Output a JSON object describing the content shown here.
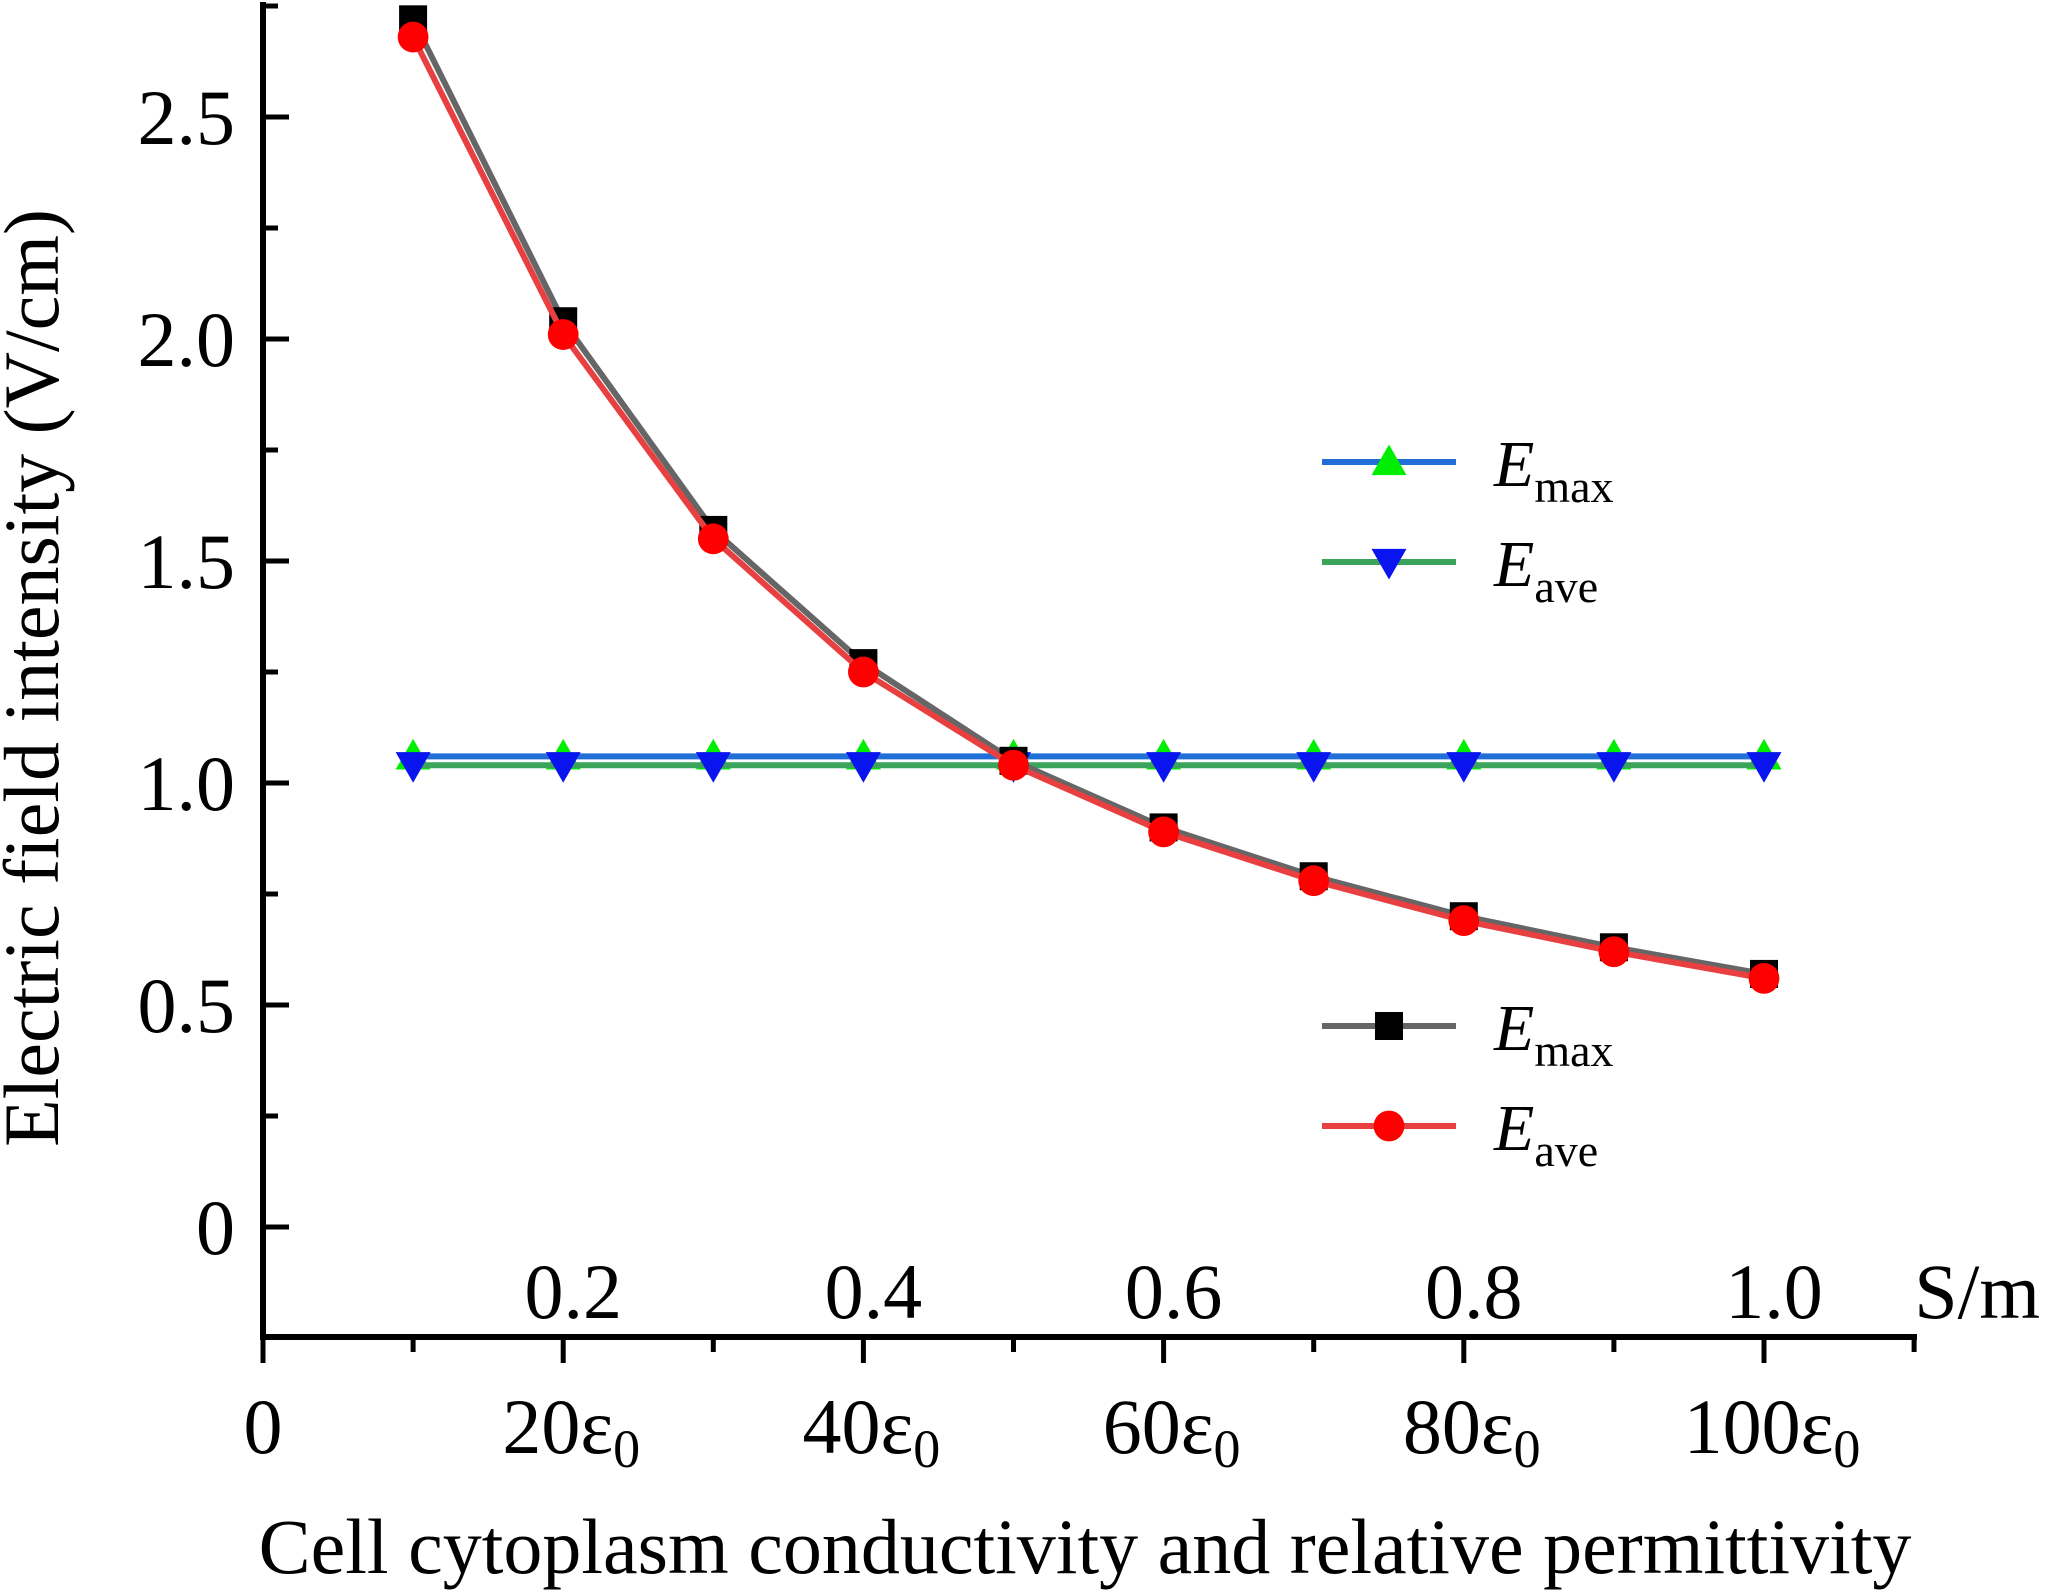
{
  "chart_data": {
    "type": "line",
    "title": "",
    "xlabel": "Cell cytoplasm conductivity and relative permittivity",
    "ylabel": "Electric field intensity (V/cm)",
    "x": [
      0.1,
      0.2,
      0.3,
      0.4,
      0.5,
      0.6,
      0.7,
      0.8,
      0.9,
      1.0
    ],
    "xlim": [
      0,
      1.1
    ],
    "ylim": [
      -0.25,
      2.75
    ],
    "yticks": [
      {
        "value": 0,
        "label": "0"
      },
      {
        "value": 0.5,
        "label": "0.5"
      },
      {
        "value": 1.0,
        "label": "1.0"
      },
      {
        "value": 1.5,
        "label": "1.5"
      },
      {
        "value": 2.0,
        "label": "2.0"
      },
      {
        "value": 2.5,
        "label": "2.5"
      }
    ],
    "xticks_conductivity": [
      {
        "value": 0.2,
        "label": "0.2"
      },
      {
        "value": 0.4,
        "label": "0.4"
      },
      {
        "value": 0.6,
        "label": "0.6"
      },
      {
        "value": 0.8,
        "label": "0.8"
      },
      {
        "value": 1.0,
        "label": "1.0"
      }
    ],
    "conductivity_unit": "S/m",
    "xticks_permittivity": [
      {
        "value": 0,
        "label": "0",
        "sub": ""
      },
      {
        "value": 0.2,
        "label": "20ε",
        "sub": "0"
      },
      {
        "value": 0.4,
        "label": "40ε",
        "sub": "0"
      },
      {
        "value": 0.6,
        "label": "60ε",
        "sub": "0"
      },
      {
        "value": 0.8,
        "label": "80ε",
        "sub": "0"
      },
      {
        "value": 1.0,
        "label": "100ε",
        "sub": "0"
      }
    ],
    "series": [
      {
        "id": "cond-emax",
        "group": "conductivity",
        "name": "E",
        "sub": "max",
        "color": "#1f6fd6",
        "marker": "triangle-up",
        "marker_color": "#00ee00",
        "values": [
          1.06,
          1.06,
          1.06,
          1.06,
          1.06,
          1.06,
          1.06,
          1.06,
          1.06,
          1.06
        ]
      },
      {
        "id": "cond-eave",
        "group": "conductivity",
        "name": "E",
        "sub": "ave",
        "color": "#3aa55a",
        "marker": "triangle-down",
        "marker_color": "#0a14ee",
        "values": [
          1.04,
          1.04,
          1.04,
          1.04,
          1.04,
          1.04,
          1.04,
          1.04,
          1.04,
          1.04
        ]
      },
      {
        "id": "perm-emax",
        "group": "permittivity",
        "name": "E",
        "sub": "max",
        "color": "#666666",
        "marker": "square",
        "marker_color": "#000000",
        "values": [
          2.72,
          2.04,
          1.57,
          1.27,
          1.05,
          0.9,
          0.79,
          0.7,
          0.63,
          0.57
        ]
      },
      {
        "id": "perm-eave",
        "group": "permittivity",
        "name": "E",
        "sub": "ave",
        "color": "#e84040",
        "marker": "circle",
        "marker_color": "#ff0000",
        "values": [
          2.68,
          2.01,
          1.55,
          1.25,
          1.04,
          0.89,
          0.78,
          0.69,
          0.62,
          0.56
        ]
      }
    ],
    "legends": [
      {
        "id": "legend-conductivity",
        "placement": "center-right",
        "entries": [
          "cond-emax",
          "cond-eave"
        ]
      },
      {
        "id": "legend-permittivity",
        "placement": "bottom-right",
        "entries": [
          "perm-emax",
          "perm-eave"
        ]
      }
    ]
  }
}
